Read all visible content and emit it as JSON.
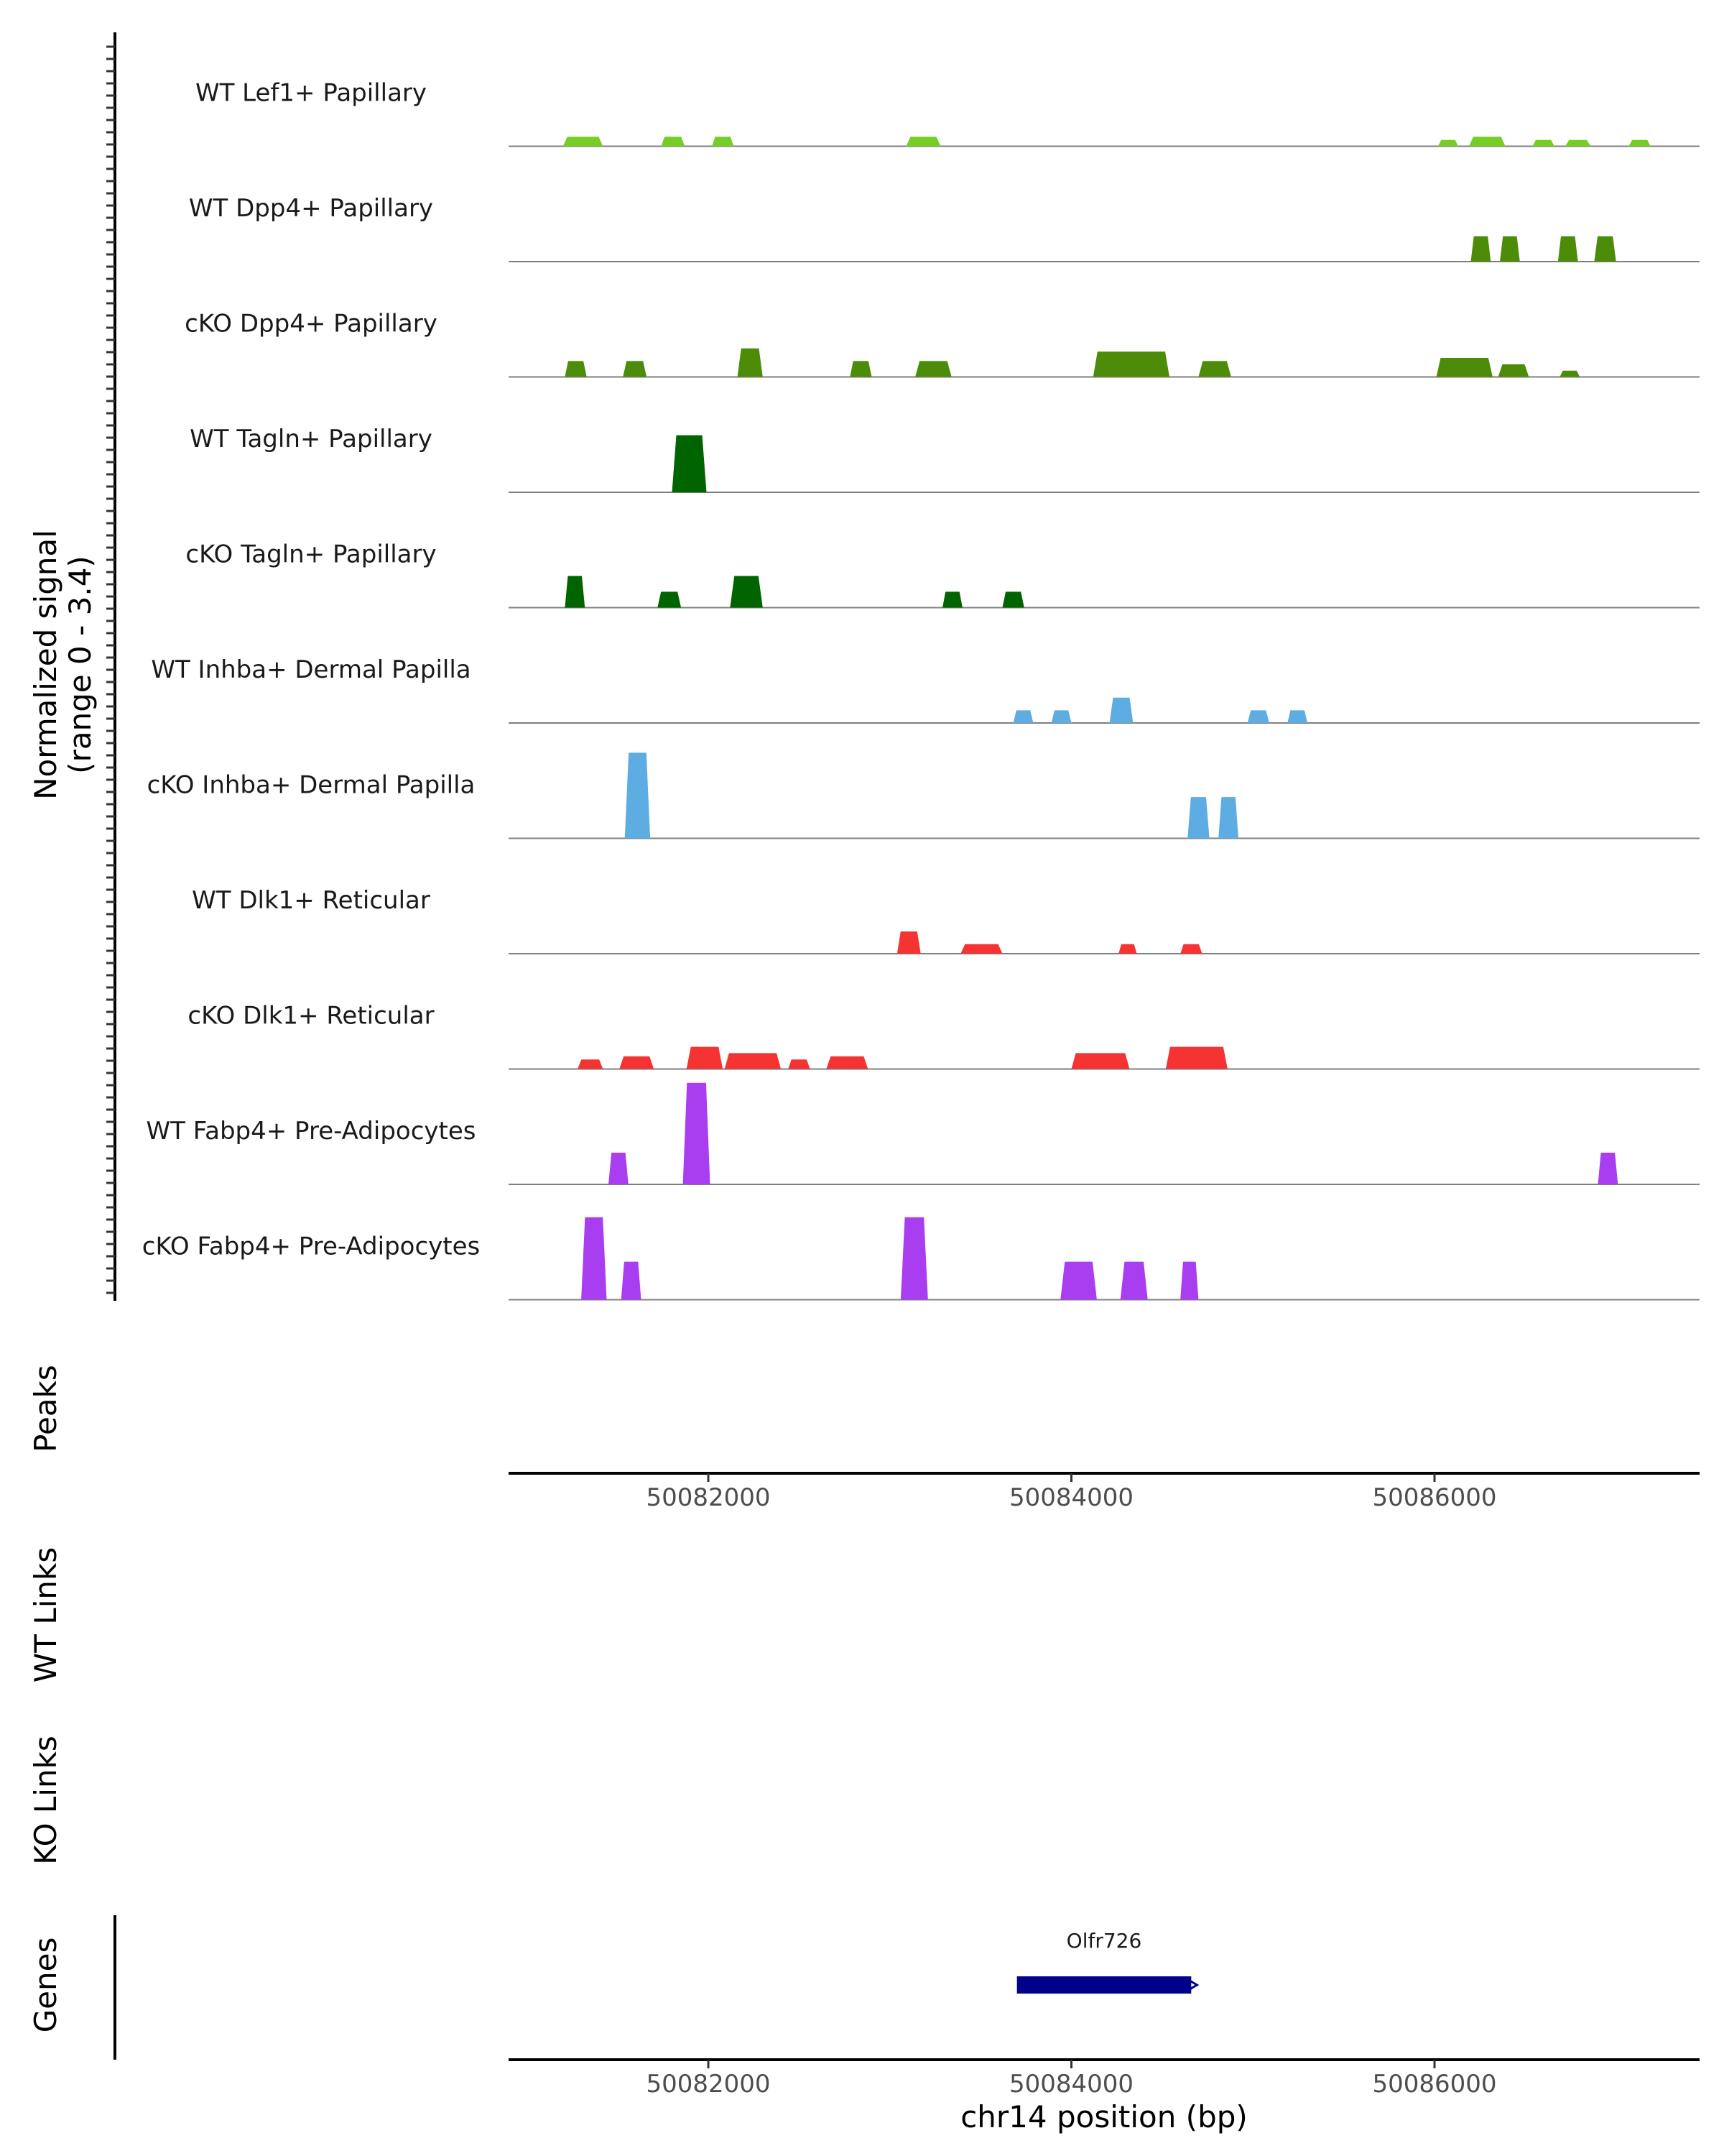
{
  "chart_data": {
    "type": "area",
    "chromosome": "chr14",
    "xlim": [
      50080900,
      50087460
    ],
    "ylim": [
      0,
      3.4
    ],
    "y_axis_title": [
      "Normalized signal",
      "(range 0 - 3.4)"
    ],
    "x_axis_title": "chr14 position (bp)",
    "x_ticks": [
      50082000,
      50084000,
      50086000
    ],
    "x_tick_labels": [
      "50082000",
      "50084000",
      "50086000"
    ],
    "tracks": [
      {
        "name": "WT Lef1+ Papillary",
        "color": "#76cd26",
        "peaks": [
          [
            50081200,
            50081420,
            0.3
          ],
          [
            50081740,
            50081870,
            0.3
          ],
          [
            50082020,
            50082140,
            0.3
          ],
          [
            50083090,
            50083280,
            0.3
          ],
          [
            50086020,
            50086130,
            0.2
          ],
          [
            50086190,
            50086390,
            0.3
          ],
          [
            50086540,
            50086660,
            0.2
          ],
          [
            50086720,
            50086860,
            0.2
          ],
          [
            50087070,
            50087190,
            0.2
          ]
        ]
      },
      {
        "name": "WT Dpp4+ Papillary",
        "color": "#4c8c08",
        "peaks": [
          [
            50086200,
            50086310,
            0.8
          ],
          [
            50086360,
            50086470,
            0.8
          ],
          [
            50086680,
            50086790,
            0.8
          ],
          [
            50086880,
            50087000,
            0.8
          ]
        ]
      },
      {
        "name": "cKO Dpp4+ Papillary",
        "color": "#4c8c08",
        "peaks": [
          [
            50081210,
            50081330,
            0.5
          ],
          [
            50081530,
            50081660,
            0.5
          ],
          [
            50082160,
            50082300,
            0.9
          ],
          [
            50082780,
            50082900,
            0.5
          ],
          [
            50083140,
            50083340,
            0.5
          ],
          [
            50084120,
            50084540,
            0.8
          ],
          [
            50084700,
            50084880,
            0.5
          ],
          [
            50086010,
            50086320,
            0.6
          ],
          [
            50086350,
            50086520,
            0.4
          ],
          [
            50086690,
            50086800,
            0.2
          ]
        ]
      },
      {
        "name": "WT Tagln+ Papillary",
        "color": "#006400",
        "peaks": [
          [
            50081800,
            50081990,
            1.8
          ]
        ]
      },
      {
        "name": "cKO Tagln+ Papillary",
        "color": "#006400",
        "peaks": [
          [
            50081210,
            50081320,
            1.0
          ],
          [
            50081720,
            50081850,
            0.5
          ],
          [
            50082120,
            50082300,
            1.0
          ],
          [
            50083290,
            50083400,
            0.5
          ],
          [
            50083620,
            50083740,
            0.5
          ]
        ]
      },
      {
        "name": "WT Inhba+ Dermal Papilla",
        "color": "#5dade2",
        "peaks": [
          [
            50083680,
            50083790,
            0.4
          ],
          [
            50083890,
            50084000,
            0.4
          ],
          [
            50084210,
            50084340,
            0.8
          ],
          [
            50084970,
            50085090,
            0.4
          ],
          [
            50085190,
            50085300,
            0.4
          ]
        ]
      },
      {
        "name": "cKO Inhba+ Dermal Papilla",
        "color": "#5dade2",
        "peaks": [
          [
            50081540,
            50081680,
            2.7
          ],
          [
            50084640,
            50084760,
            1.3
          ],
          [
            50084810,
            50084920,
            1.3
          ]
        ]
      },
      {
        "name": "WT Dlk1+ Reticular",
        "color": "#f53333",
        "peaks": [
          [
            50083040,
            50083170,
            0.7
          ],
          [
            50083390,
            50083620,
            0.3
          ],
          [
            50084260,
            50084360,
            0.3
          ],
          [
            50084600,
            50084720,
            0.3
          ]
        ]
      },
      {
        "name": "cKO Dlk1+ Reticular",
        "color": "#f53333",
        "peaks": [
          [
            50081280,
            50081420,
            0.3
          ],
          [
            50081510,
            50081700,
            0.4
          ],
          [
            50081880,
            50082080,
            0.7
          ],
          [
            50082090,
            50082400,
            0.5
          ],
          [
            50082440,
            50082560,
            0.3
          ],
          [
            50082650,
            50082880,
            0.4
          ],
          [
            50084000,
            50084320,
            0.5
          ],
          [
            50084520,
            50084860,
            0.7
          ]
        ]
      },
      {
        "name": "WT Fabp4+ Pre-Adipocytes",
        "color": "#a83ef0",
        "peaks": [
          [
            50081450,
            50081560,
            1.0
          ],
          [
            50081860,
            50082010,
            3.2
          ],
          [
            50086900,
            50087010,
            1.0
          ]
        ]
      },
      {
        "name": "cKO Fabp4+ Pre-Adipocytes",
        "color": "#a83ef0",
        "peaks": [
          [
            50081300,
            50081440,
            2.6
          ],
          [
            50081520,
            50081630,
            1.2
          ],
          [
            50083060,
            50083210,
            2.6
          ],
          [
            50083940,
            50084140,
            1.2
          ],
          [
            50084270,
            50084420,
            1.2
          ],
          [
            50084600,
            50084700,
            1.2
          ]
        ]
      }
    ],
    "panels": [
      "Peaks",
      "WT Links",
      "KO Links",
      "Genes"
    ],
    "genes": [
      {
        "name": "Olfr726",
        "start": 50083700,
        "end": 50084660,
        "color": "#00008b"
      }
    ]
  }
}
